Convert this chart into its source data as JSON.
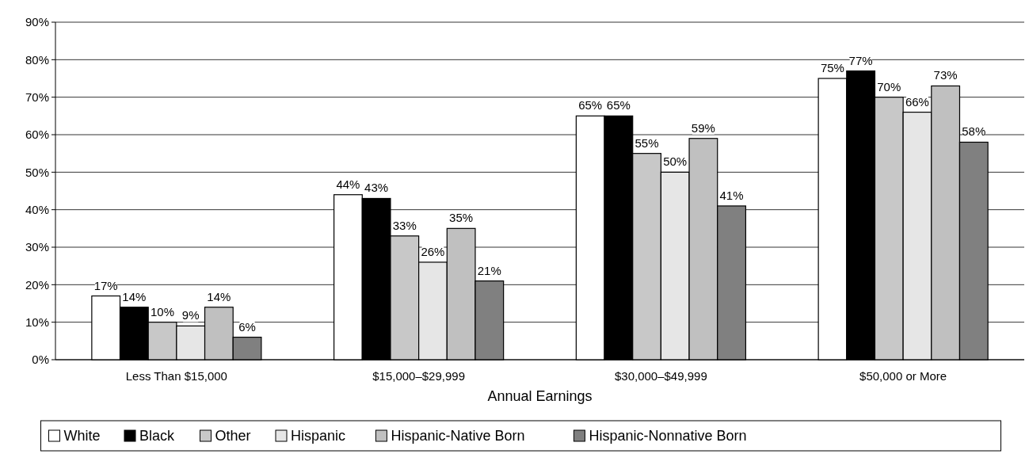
{
  "chart_data": {
    "type": "bar",
    "xlabel": "Annual Earnings",
    "categories": [
      "Less Than $15,000",
      "$15,000–$29,999",
      "$30,000–$49,999",
      "$50,000 or More"
    ],
    "series": [
      {
        "name": "White",
        "color": "#ffffff",
        "values": [
          17,
          44,
          65,
          75
        ],
        "value_labels": [
          "17%",
          "44%",
          "65%",
          "75%"
        ]
      },
      {
        "name": "Black",
        "color": "#000000",
        "values": [
          14,
          43,
          65,
          77
        ],
        "value_labels": [
          "14%",
          "43%",
          "65%",
          "77%"
        ]
      },
      {
        "name": "Other",
        "color": "#c8c8c8",
        "values": [
          10,
          33,
          55,
          70
        ],
        "value_labels": [
          "10%",
          "33%",
          "55%",
          "70%"
        ]
      },
      {
        "name": "Hispanic",
        "color": "#e6e6e6",
        "values": [
          9,
          26,
          50,
          66
        ],
        "value_labels": [
          "9%",
          "26%",
          "50%",
          "66%"
        ]
      },
      {
        "name": "Hispanic-Native Born",
        "color": "#c0c0c0",
        "values": [
          14,
          35,
          59,
          73
        ],
        "value_labels": [
          "14%",
          "35%",
          "59%",
          "73%"
        ]
      },
      {
        "name": "Hispanic-Nonnative Born",
        "color": "#808080",
        "values": [
          6,
          21,
          41,
          58
        ],
        "value_labels": [
          "6%",
          "21%",
          "41%",
          "58%"
        ]
      }
    ],
    "ylim": [
      0,
      90
    ],
    "yticks": [
      {
        "value": 0,
        "label": "0%"
      },
      {
        "value": 10,
        "label": "10%"
      },
      {
        "value": 20,
        "label": "20%"
      },
      {
        "value": 30,
        "label": "30%"
      },
      {
        "value": 40,
        "label": "40%"
      },
      {
        "value": 50,
        "label": "50%"
      },
      {
        "value": 60,
        "label": "60%"
      },
      {
        "value": 70,
        "label": "70%"
      },
      {
        "value": 80,
        "label": "80%"
      },
      {
        "value": 90,
        "label": "90%"
      }
    ],
    "grid": "y",
    "legend": "bottom"
  }
}
